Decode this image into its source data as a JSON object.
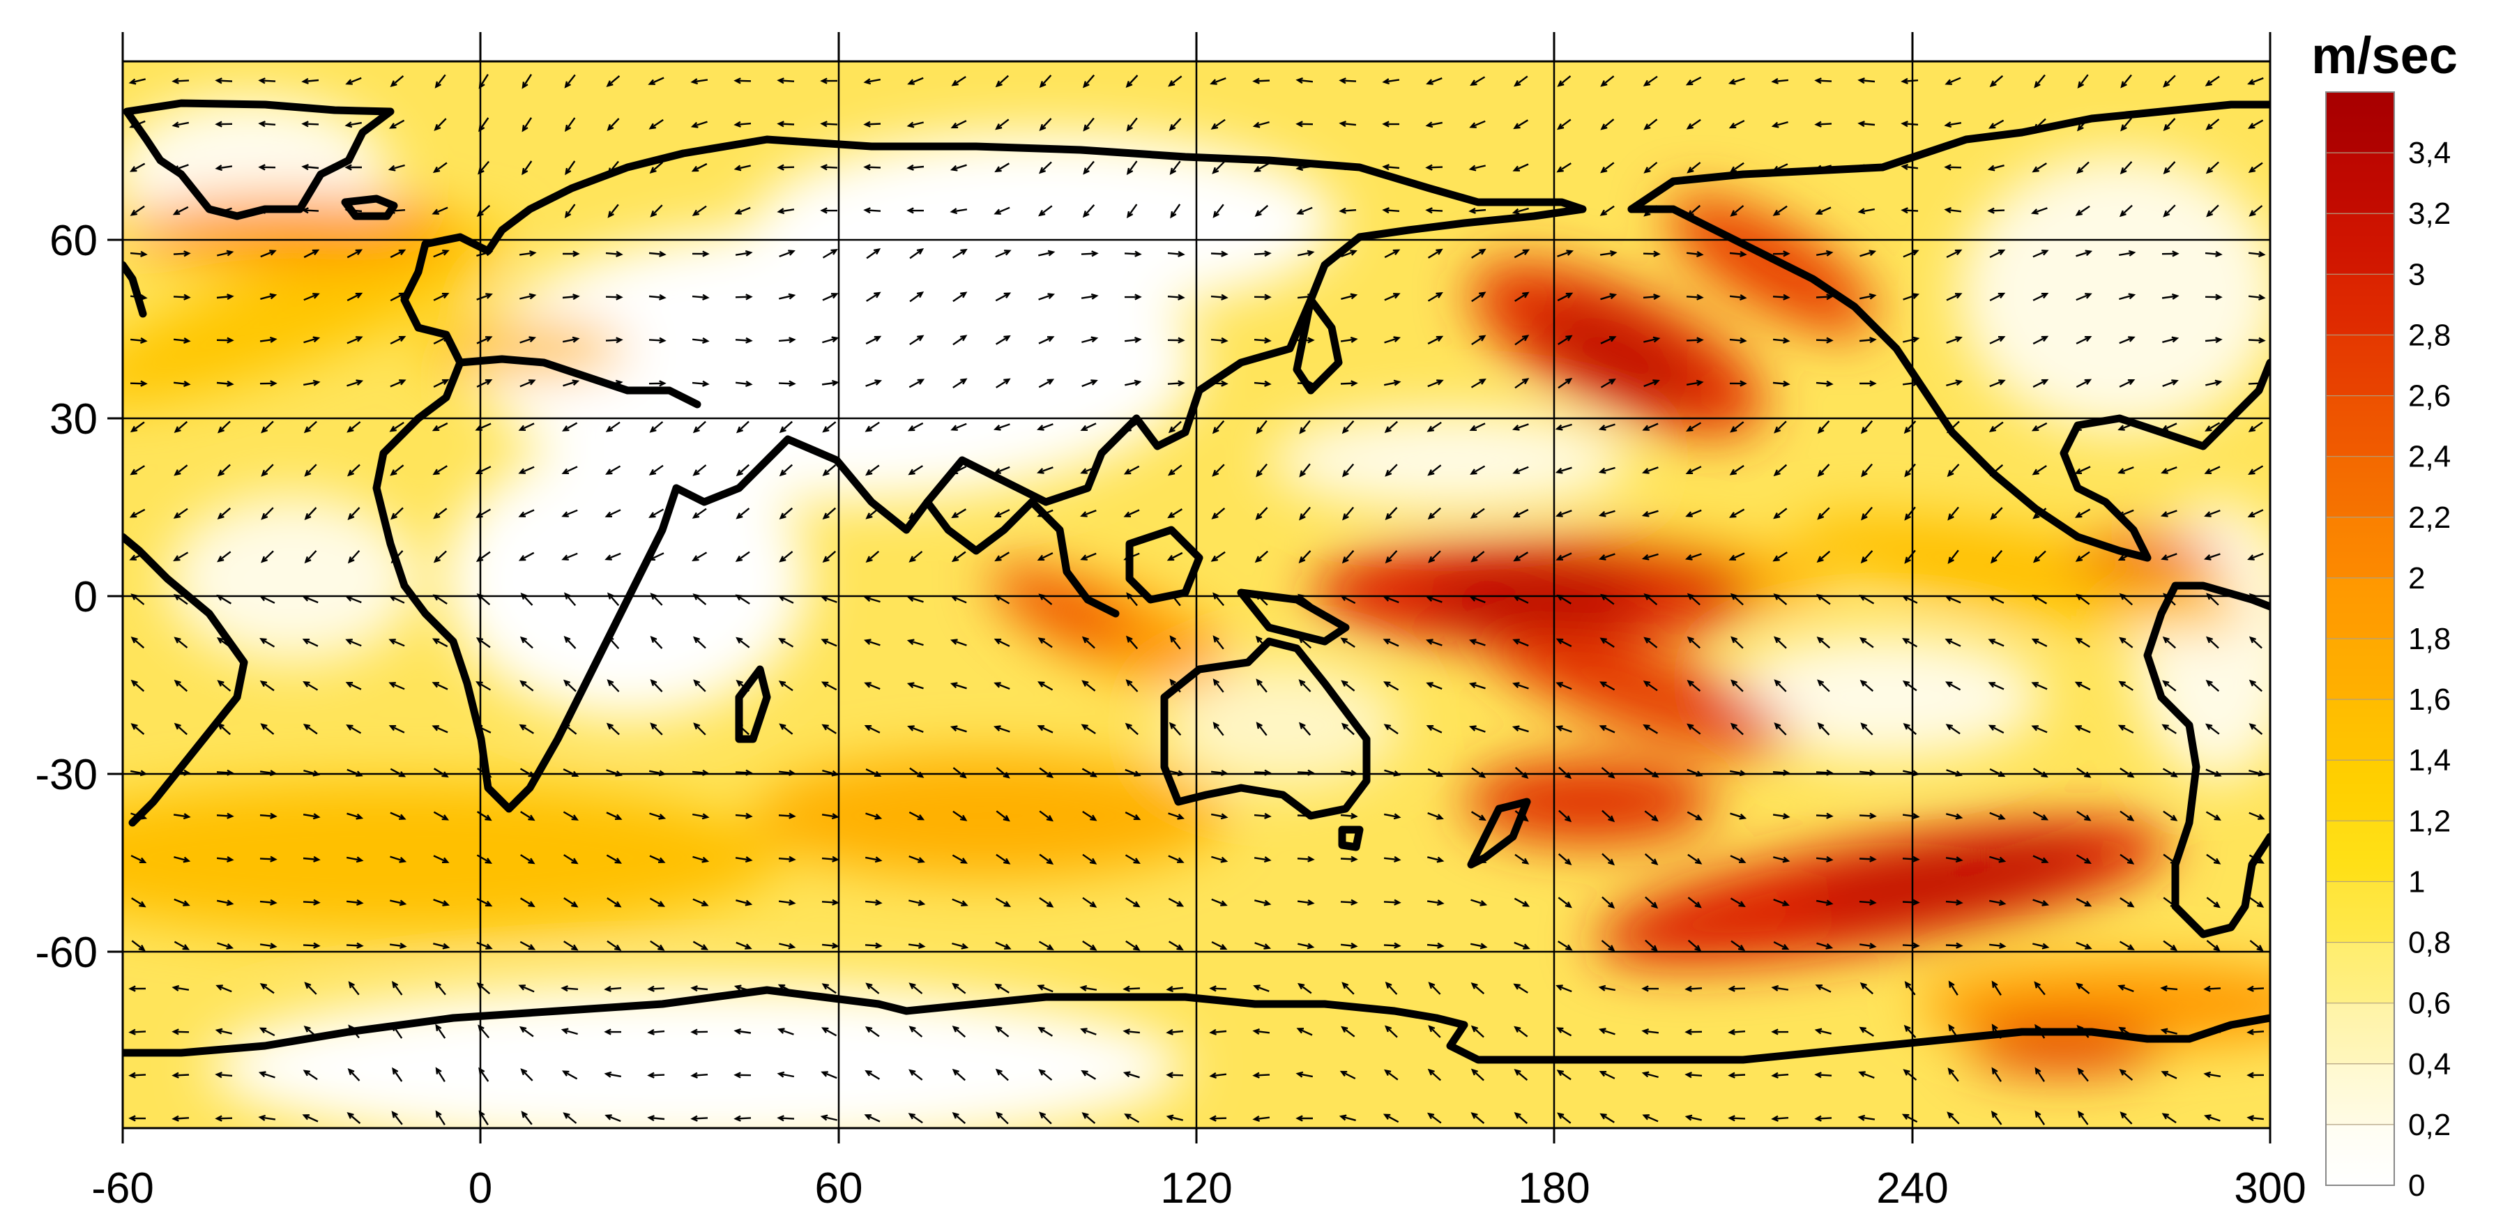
{
  "colorbar": {
    "unit": "m/sec",
    "tick_labels": [
      "0",
      "0,2",
      "0,4",
      "0,6",
      "0,8",
      "1",
      "1,2",
      "1,4",
      "1,6",
      "1,8",
      "2",
      "2,2",
      "2,4",
      "2,6",
      "2,8",
      "3",
      "3,2",
      "3,4"
    ],
    "range": [
      0,
      3.6
    ],
    "step": 0.2,
    "colors": [
      "#ffffff",
      "#fffbe6",
      "#fff6c4",
      "#fff08a",
      "#ffe94d",
      "#ffe11a",
      "#ffd400",
      "#ffc200",
      "#ffad00",
      "#ff9a00",
      "#fb8100",
      "#f46a00",
      "#ee5200",
      "#e63a00",
      "#dc2500",
      "#ce1300",
      "#bd0800",
      "#a80000"
    ]
  },
  "map": {
    "x_ticks": [
      "-60",
      "0",
      "60",
      "120",
      "180",
      "240",
      "300"
    ],
    "y_ticks": [
      "60",
      "30",
      "0",
      "-30",
      "-60"
    ],
    "lon_range": [
      -60,
      300
    ],
    "lat_range": [
      -90,
      90
    ],
    "grid": true,
    "field": "wind speed with direction arrows",
    "max_centers": [
      {
        "lon": 180,
        "lat": 0,
        "value": 3.0
      },
      {
        "lon": 195,
        "lat": 40,
        "value": 3.4
      },
      {
        "lon": 225,
        "lat": 53,
        "value": 2.6
      },
      {
        "lon": 250,
        "lat": -52,
        "value": 3.0
      },
      {
        "lon": 190,
        "lat": -38,
        "value": 2.4
      },
      {
        "lon": 200,
        "lat": -17,
        "value": 2.2
      },
      {
        "lon": 105,
        "lat": -3,
        "value": 2.0
      },
      {
        "lon": -25,
        "lat": 60,
        "value": 1.6
      },
      {
        "lon": 270,
        "lat": -78,
        "value": 2.2
      }
    ]
  }
}
